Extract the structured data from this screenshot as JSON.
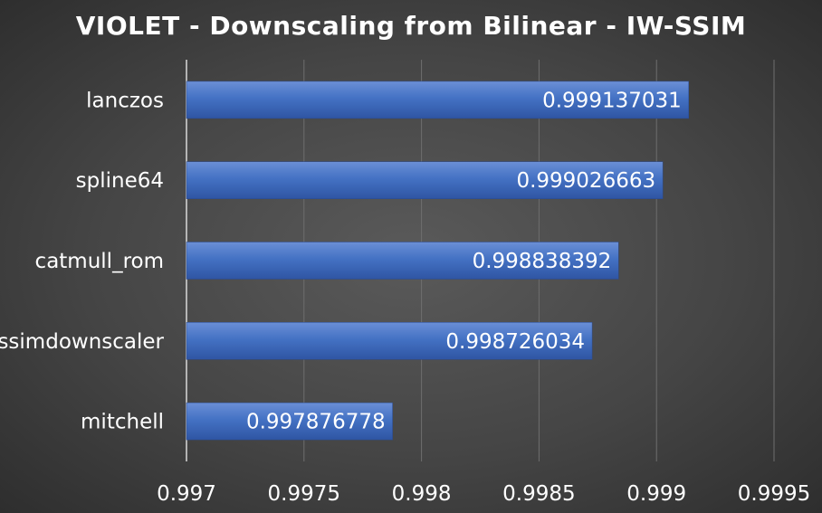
{
  "chart_data": {
    "type": "bar",
    "orientation": "horizontal",
    "title": "VIOLET - Downscaling from Bilinear - IW-SSIM",
    "xlabel": "",
    "ylabel": "",
    "categories": [
      "lanczos",
      "spline64",
      "catmull_rom",
      "ssimdownscaler",
      "mitchell"
    ],
    "values": [
      0.999137031,
      0.999026663,
      0.998838392,
      0.998726034,
      0.997876778
    ],
    "value_labels": [
      "0.999137031",
      "0.999026663",
      "0.998838392",
      "0.998726034",
      "0.997876778"
    ],
    "xlim": [
      0.997,
      0.9995
    ],
    "xticks": [
      0.997,
      0.9975,
      0.998,
      0.9985,
      0.999,
      0.9995
    ],
    "xtick_labels": [
      "0.997",
      "0.9975",
      "0.998",
      "0.9985",
      "0.999",
      "0.9995"
    ],
    "grid": true,
    "legend": "none",
    "colors": {
      "bar": "#4472c4",
      "bar_light": "#6b8fd6",
      "bar_dark": "#2f55a3",
      "text": "#ffffff",
      "grid": "#6e6e6e",
      "axis": "#d9d9d9"
    }
  }
}
